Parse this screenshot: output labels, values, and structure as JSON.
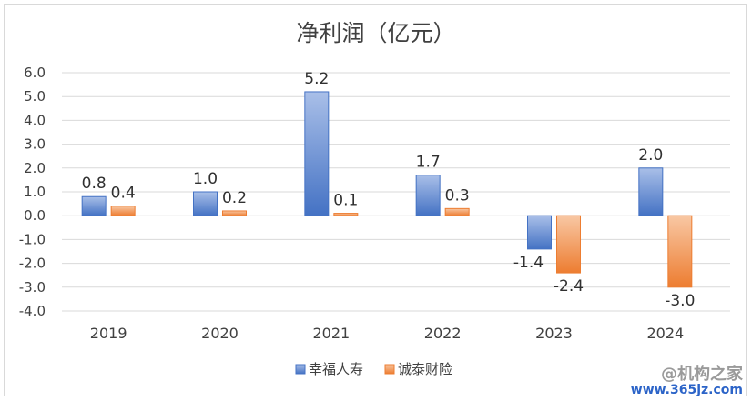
{
  "chart_data": {
    "type": "bar",
    "title": "净利润（亿元）",
    "categories": [
      "2019",
      "2020",
      "2021",
      "2022",
      "2023",
      "2024"
    ],
    "series": [
      {
        "name": "幸福人寿",
        "values": [
          0.8,
          1.0,
          5.2,
          1.7,
          -1.4,
          2.0
        ],
        "color": "#4472c4"
      },
      {
        "name": "诚泰财险",
        "values": [
          0.4,
          0.2,
          0.1,
          0.3,
          -2.4,
          -3.0
        ],
        "color": "#ed7d31"
      }
    ],
    "data_labels": [
      [
        "0.8",
        "1.0",
        "5.2",
        "1.7",
        "-1.4",
        "2.0"
      ],
      [
        "0.4",
        "0.2",
        "0.1",
        "0.3",
        "-2.4",
        "-3.0"
      ]
    ],
    "y_ticks": [
      "6.0",
      "5.0",
      "4.0",
      "3.0",
      "2.0",
      "1.0",
      "0.0",
      "-1.0",
      "-2.0",
      "-3.0",
      "-4.0"
    ],
    "ylim": [
      -4,
      6
    ],
    "grid": true,
    "legend_position": "bottom"
  },
  "watermark": {
    "line1": "@机构之家",
    "line2": "www.365jz.com"
  }
}
